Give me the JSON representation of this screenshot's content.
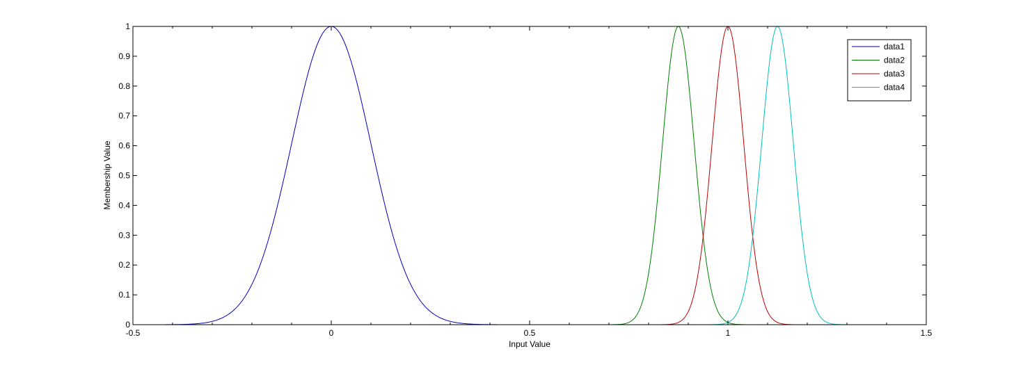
{
  "chart_data": {
    "type": "line",
    "title": "",
    "xlabel": "Input Value",
    "ylabel": "Membership Value",
    "xlim": [
      -0.5,
      1.5
    ],
    "ylim": [
      0,
      1
    ],
    "x_ticks": [
      "-0.5",
      "0",
      "0.5",
      "1",
      "1.5"
    ],
    "y_ticks": [
      "0",
      "0.1",
      "0.2",
      "0.3",
      "0.4",
      "0.5",
      "0.6",
      "0.7",
      "0.8",
      "0.9",
      "1"
    ],
    "grid": false,
    "legend_position": "top-right",
    "series": [
      {
        "name": "data1",
        "color": "#0000bf",
        "shape": "gaussian",
        "center": 0.0,
        "sigma": 0.1,
        "x_range": [
          -0.5,
          1.5
        ]
      },
      {
        "name": "data2",
        "color": "#007f00",
        "shape": "gaussian",
        "center": 0.875,
        "sigma": 0.04,
        "x_range": [
          0.55,
          1.44
        ]
      },
      {
        "name": "data3",
        "color": "#bf0000",
        "shape": "gaussian",
        "center": 1.0,
        "sigma": 0.04,
        "x_range": [
          0.55,
          1.44
        ]
      },
      {
        "name": "data4",
        "color": "#00bfbf",
        "shape": "gaussian",
        "center": 1.125,
        "sigma": 0.04,
        "x_range": [
          0.55,
          1.44
        ]
      }
    ]
  }
}
